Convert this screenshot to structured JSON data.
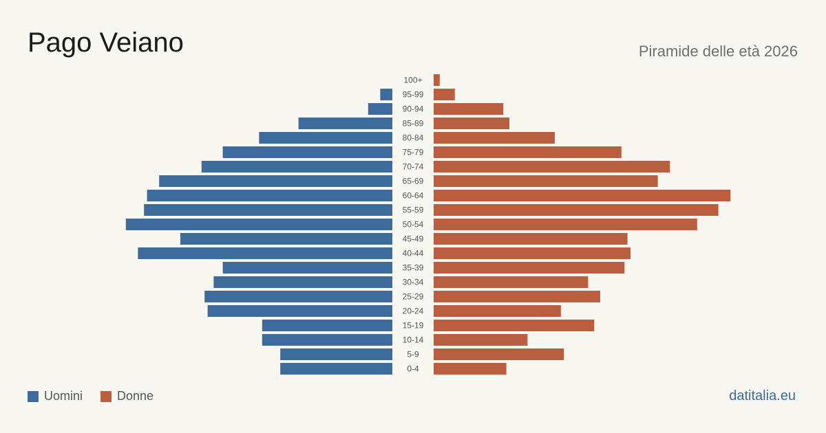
{
  "header": {
    "title": "Pago Veiano",
    "subtitle": "Piramide delle età 2026"
  },
  "legend": {
    "male_label": "Uomini",
    "female_label": "Donne"
  },
  "source": "datitalia.eu",
  "colors": {
    "male": "#3d6b9c",
    "female": "#b95e3e",
    "background": "#f9f7f2",
    "tick_text": "#555555"
  },
  "chart_data": {
    "type": "bar",
    "orientation": "horizontal-pyramid",
    "categories": [
      "100+",
      "95-99",
      "90-94",
      "85-89",
      "80-84",
      "75-79",
      "70-74",
      "65-69",
      "60-64",
      "55-59",
      "50-54",
      "45-49",
      "40-44",
      "35-39",
      "30-34",
      "25-29",
      "20-24",
      "15-19",
      "10-14",
      "5-9",
      "0-4"
    ],
    "series": [
      {
        "name": "Uomini",
        "values": [
          0,
          4,
          8,
          31,
          44,
          56,
          63,
          77,
          81,
          82,
          88,
          70,
          84,
          56,
          59,
          62,
          61,
          43,
          43,
          37,
          37
        ]
      },
      {
        "name": "Donne",
        "values": [
          2,
          7,
          23,
          25,
          40,
          62,
          78,
          74,
          98,
          94,
          87,
          64,
          65,
          63,
          51,
          55,
          42,
          53,
          31,
          43,
          24
        ]
      }
    ],
    "title": "Pago Veiano",
    "subtitle": "Piramide delle età 2026",
    "legend_position": "bottom-left",
    "grid": false
  }
}
